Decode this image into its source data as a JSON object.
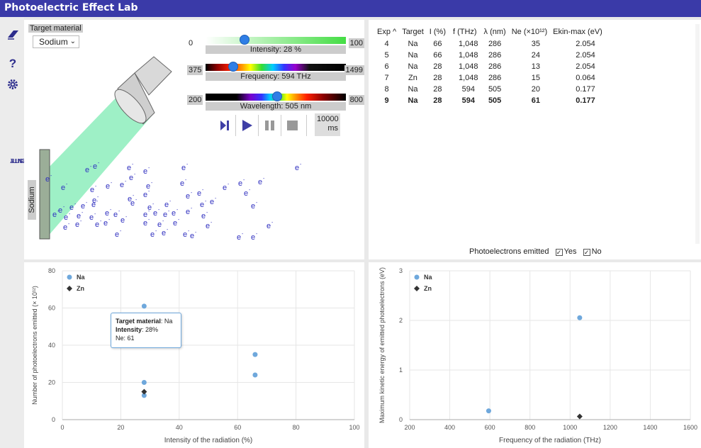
{
  "app": {
    "title": "Photoelectric Effect Lab"
  },
  "sidebar": {
    "eraser_icon": "eraser-icon",
    "help_label": "?",
    "settings_icon": "gear-icon",
    "university_line1": "UNIVERSITY",
    "university_line2": "OF TWENTE"
  },
  "simulation": {
    "target_label": "Target material",
    "target_value": "Sodium",
    "plate_label": "Sodium",
    "electron_label": "e",
    "intensity": {
      "min": "0",
      "max": "100",
      "caption": "Intensity: 28 %",
      "value": 28
    },
    "frequency": {
      "min": "375",
      "max": "1499",
      "caption": "Frequency: 594 THz",
      "value": 594
    },
    "wavelength": {
      "min": "200",
      "max": "800",
      "caption": "Wavelength: 505 nm",
      "value": 505
    },
    "timer_line1": "10000",
    "timer_line2": "ms"
  },
  "table": {
    "headers": [
      "Exp",
      "Target",
      "I (%)",
      "f (THz)",
      "λ (nm)",
      "Ne (×10¹²)",
      "Ekin-max (eV)"
    ],
    "sort_indicator": "^",
    "rows": [
      [
        "4",
        "Na",
        "66",
        "1,048",
        "286",
        "35",
        "2.054"
      ],
      [
        "5",
        "Na",
        "66",
        "1,048",
        "286",
        "24",
        "2.054"
      ],
      [
        "6",
        "Na",
        "28",
        "1,048",
        "286",
        "13",
        "2.054"
      ],
      [
        "7",
        "Zn",
        "28",
        "1,048",
        "286",
        "15",
        "0.064"
      ],
      [
        "8",
        "Na",
        "28",
        "594",
        "505",
        "20",
        "0.177"
      ],
      [
        "9",
        "Na",
        "28",
        "594",
        "505",
        "61",
        "0.177"
      ]
    ],
    "emitted_label": "Photoelectrons emitted",
    "yes_label": "Yes",
    "no_label": "No"
  },
  "colors": {
    "na": "#6fa8dc",
    "zn": "#333333",
    "beam": "#9ef0c6",
    "accent": "#3a3aa8"
  },
  "chart_data": [
    {
      "type": "scatter",
      "xlabel": "Intensity of the radiation (%)",
      "ylabel": "Number of photoelectrons emitted (× 10¹²)",
      "xlim": [
        0,
        100
      ],
      "ylim": [
        0,
        80
      ],
      "xticks": [
        "0",
        "20",
        "40",
        "60",
        "80",
        "100"
      ],
      "yticks": [
        "0",
        "20",
        "40",
        "60",
        "80"
      ],
      "legend": "top-left",
      "series": [
        {
          "name": "Na",
          "points": [
            [
              28,
              13
            ],
            [
              28,
              20
            ],
            [
              28,
              61
            ],
            [
              66,
              24
            ],
            [
              66,
              35
            ]
          ]
        },
        {
          "name": "Zn",
          "points": [
            [
              28,
              15
            ]
          ]
        }
      ],
      "tooltip": {
        "material_label": "Target material",
        "material_value": "Na",
        "intensity_label": "Intensity",
        "intensity_value": "28%",
        "ne_label": "Ne",
        "ne_value": "61"
      }
    },
    {
      "type": "scatter",
      "xlabel": "Frequency of the radiation (THz)",
      "ylabel": "Maximum kinetic energy of emitted photoelectrons (eV)",
      "xlim": [
        200,
        1600
      ],
      "ylim": [
        0,
        3
      ],
      "xticks": [
        "200",
        "400",
        "600",
        "800",
        "1000",
        "1200",
        "1400",
        "1600"
      ],
      "yticks": [
        "0",
        "1",
        "2",
        "3"
      ],
      "legend": "top-left",
      "series": [
        {
          "name": "Na",
          "points": [
            [
              594,
              0.177
            ],
            [
              1048,
              2.054
            ]
          ]
        },
        {
          "name": "Zn",
          "points": [
            [
              1048,
              0.064
            ]
          ]
        }
      ]
    }
  ]
}
